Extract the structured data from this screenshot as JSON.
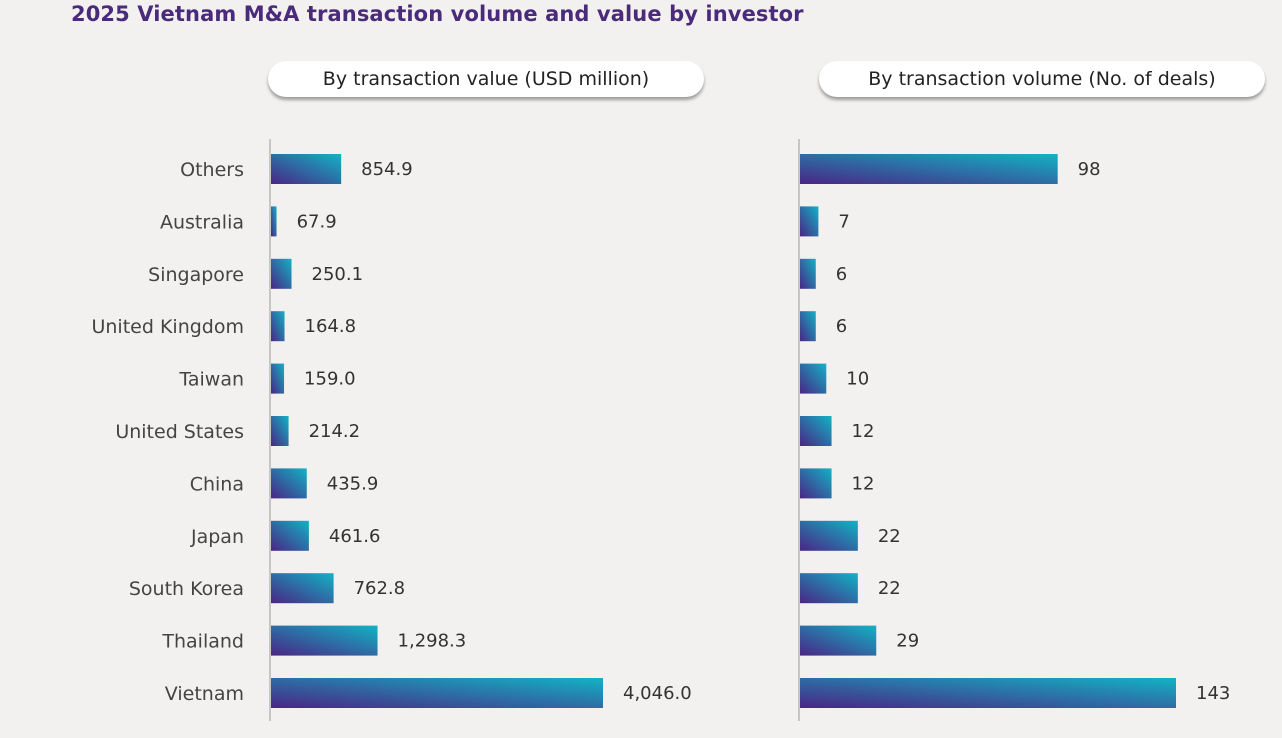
{
  "title": "2025 Vietnam M&A transaction volume and value by investor",
  "colors": {
    "title": "#4a2a7a",
    "bar_start": "#4a2585",
    "bar_end": "#12b3c4",
    "axis": "#c8c6c4"
  },
  "chart_data": [
    {
      "type": "bar",
      "orientation": "horizontal",
      "title": "By transaction value (USD million)",
      "categories": [
        "Others",
        "Australia",
        "Singapore",
        "United Kingdom",
        "Taiwan",
        "United States",
        "China",
        "Japan",
        "South Korea",
        "Thailand",
        "Vietnam"
      ],
      "values": [
        854.9,
        67.9,
        250.1,
        164.8,
        159.0,
        214.2,
        435.9,
        461.6,
        762.8,
        1298.3,
        4046.0
      ],
      "value_labels": [
        "854.9",
        "67.9",
        "250.1",
        "164.8",
        "159.0",
        "214.2",
        "435.9",
        "461.6",
        "762.8",
        "1,298.3",
        "4,046.0"
      ],
      "xlim": [
        0,
        4046.0
      ]
    },
    {
      "type": "bar",
      "orientation": "horizontal",
      "title": "By transaction volume (No. of deals)",
      "categories": [
        "Others",
        "Australia",
        "Singapore",
        "United Kingdom",
        "Taiwan",
        "United States",
        "China",
        "Japan",
        "South Korea",
        "Thailand",
        "Vietnam"
      ],
      "values": [
        98,
        7,
        6,
        6,
        10,
        12,
        12,
        22,
        22,
        29,
        143
      ],
      "value_labels": [
        "98",
        "7",
        "6",
        "6",
        "10",
        "12",
        "12",
        "22",
        "22",
        "29",
        "143"
      ],
      "xlim": [
        0,
        143
      ]
    }
  ]
}
